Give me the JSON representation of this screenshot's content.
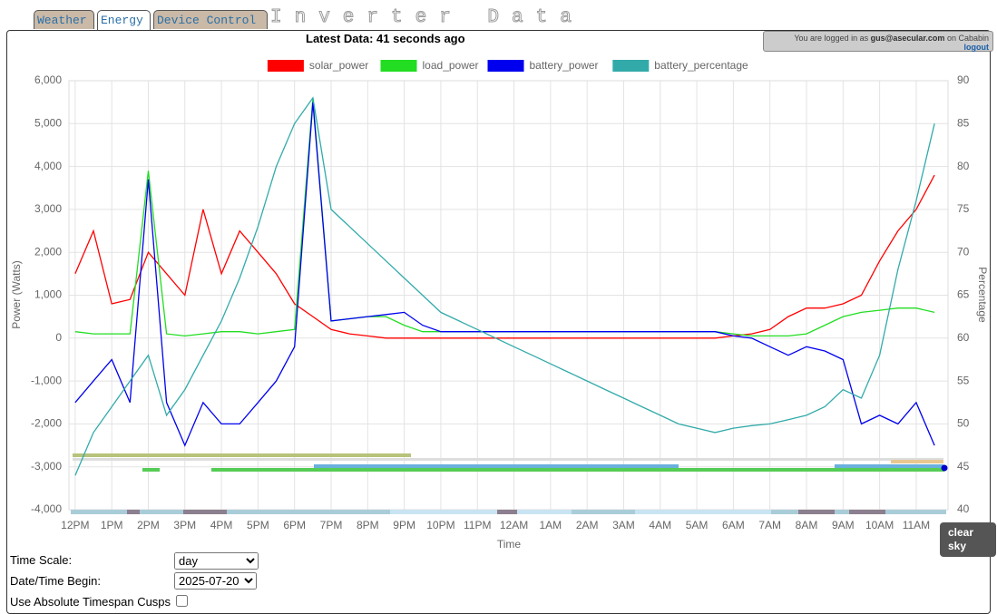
{
  "tabs": [
    "Weather",
    "Energy",
    "Device Control"
  ],
  "page_title": "Inverter Data",
  "login": {
    "prefix": "You are logged in as",
    "user": "gus@asecular.com",
    "suffix": "on Cababin",
    "logout": "logout"
  },
  "status": "Latest Data: 41 seconds ago",
  "tooltip": "clear sky",
  "controls": {
    "time_scale_label": "Time Scale:",
    "time_scale_value": "day",
    "date_label": "Date/Time Begin:",
    "date_value": "2025-07-20",
    "cusps_label": "Use Absolute Timespan Cusps"
  },
  "chart_data": {
    "type": "line",
    "xlabel": "Time",
    "ylabel": "Power (Watts)",
    "y2label": "Percentage",
    "x": [
      0,
      0.5,
      1,
      1.5,
      2,
      2.5,
      3,
      3.5,
      4,
      4.5,
      5,
      5.5,
      6,
      6.5,
      7,
      7.5,
      8,
      8.5,
      9,
      9.5,
      10,
      10.5,
      11,
      11.5,
      12,
      12.5,
      13,
      13.5,
      14,
      14.5,
      15,
      15.5,
      16,
      16.5,
      17,
      17.5,
      18,
      18.5,
      19,
      19.5,
      20,
      20.5,
      21,
      21.5,
      22,
      22.5,
      23,
      23.5
    ],
    "xlim": [
      -0.17,
      23.87
    ],
    "xticks": [
      {
        "value": 0,
        "label": "12PM"
      },
      {
        "value": 1,
        "label": "1PM"
      },
      {
        "value": 2,
        "label": "2PM"
      },
      {
        "value": 3,
        "label": "3PM"
      },
      {
        "value": 4,
        "label": "4PM"
      },
      {
        "value": 5,
        "label": "5PM"
      },
      {
        "value": 6,
        "label": "6PM"
      },
      {
        "value": 7,
        "label": "7PM"
      },
      {
        "value": 8,
        "label": "8PM"
      },
      {
        "value": 9,
        "label": "9PM"
      },
      {
        "value": 10,
        "label": "10PM"
      },
      {
        "value": 11,
        "label": "11PM"
      },
      {
        "value": 12,
        "label": "12AM"
      },
      {
        "value": 13,
        "label": "1AM"
      },
      {
        "value": 14,
        "label": "2AM"
      },
      {
        "value": 15,
        "label": "3AM"
      },
      {
        "value": 16,
        "label": "4AM"
      },
      {
        "value": 17,
        "label": "5AM"
      },
      {
        "value": 18,
        "label": "6AM"
      },
      {
        "value": 19,
        "label": "7AM"
      },
      {
        "value": 20,
        "label": "8AM"
      },
      {
        "value": 21,
        "label": "9AM"
      },
      {
        "value": 22,
        "label": "10AM"
      },
      {
        "value": 23,
        "label": "11AM"
      }
    ],
    "ylim": [
      -4000,
      6000
    ],
    "yticks": [
      {
        "value": -4000,
        "label": "-4,000"
      },
      {
        "value": -3000,
        "label": "-3,000"
      },
      {
        "value": -2000,
        "label": "-2,000"
      },
      {
        "value": -1000,
        "label": "-1,000"
      },
      0,
      {
        "value": 1000,
        "label": "1,000"
      },
      {
        "value": 2000,
        "label": "2,000"
      },
      {
        "value": 3000,
        "label": "3,000"
      },
      {
        "value": 4000,
        "label": "4,000"
      },
      {
        "value": 5000,
        "label": "5,000"
      },
      {
        "value": 6000,
        "label": "6,000"
      }
    ],
    "y2lim": [
      40,
      90
    ],
    "y2ticks": [
      40,
      45,
      50,
      55,
      60,
      65,
      70,
      75,
      80,
      85,
      90
    ],
    "grid": true,
    "legend": "top",
    "series": [
      {
        "name": "solar_power",
        "color": "#ff0000",
        "values": [
          1500,
          2500,
          800,
          900,
          2000,
          1500,
          1000,
          3000,
          1500,
          2500,
          2000,
          1500,
          800,
          500,
          200,
          100,
          50,
          0,
          0,
          0,
          0,
          0,
          0,
          0,
          0,
          0,
          0,
          0,
          0,
          0,
          0,
          0,
          0,
          0,
          0,
          0,
          50,
          100,
          200,
          500,
          700,
          700,
          800,
          1000,
          1800,
          2500,
          3000,
          3800
        ]
      },
      {
        "name": "load_power",
        "color": "#22dd22",
        "values": [
          150,
          100,
          100,
          100,
          3900,
          100,
          50,
          100,
          150,
          150,
          100,
          150,
          200,
          5600,
          400,
          450,
          500,
          500,
          300,
          150,
          150,
          150,
          150,
          150,
          150,
          150,
          150,
          150,
          150,
          150,
          150,
          150,
          150,
          150,
          150,
          150,
          100,
          50,
          50,
          50,
          100,
          300,
          500,
          600,
          650,
          700,
          700,
          600
        ]
      },
      {
        "name": "battery_power",
        "color": "#0000ee",
        "values": [
          -1500,
          -1000,
          -500,
          -1500,
          3700,
          -1500,
          -2500,
          -1500,
          -2000,
          -2000,
          -1500,
          -1000,
          -200,
          5500,
          400,
          450,
          500,
          550,
          600,
          300,
          150,
          150,
          150,
          150,
          150,
          150,
          150,
          150,
          150,
          150,
          150,
          150,
          150,
          150,
          150,
          150,
          50,
          0,
          -200,
          -400,
          -200,
          -300,
          -500,
          -2000,
          -1800,
          -2000,
          -1500,
          -2500
        ]
      },
      {
        "name": "battery_percentage",
        "color": "#33aaaa",
        "axis": "y2",
        "values": [
          44,
          49,
          52,
          55,
          58,
          51,
          54,
          58,
          62,
          67,
          73,
          80,
          85,
          88,
          75,
          73,
          71,
          69,
          67,
          65,
          63,
          62,
          61,
          60,
          59,
          58,
          57,
          56,
          55,
          54,
          53,
          52,
          51,
          50,
          49.5,
          49,
          49.5,
          49.8,
          50,
          50.5,
          51,
          52,
          54,
          53,
          58,
          68,
          76,
          85
        ]
      }
    ]
  }
}
